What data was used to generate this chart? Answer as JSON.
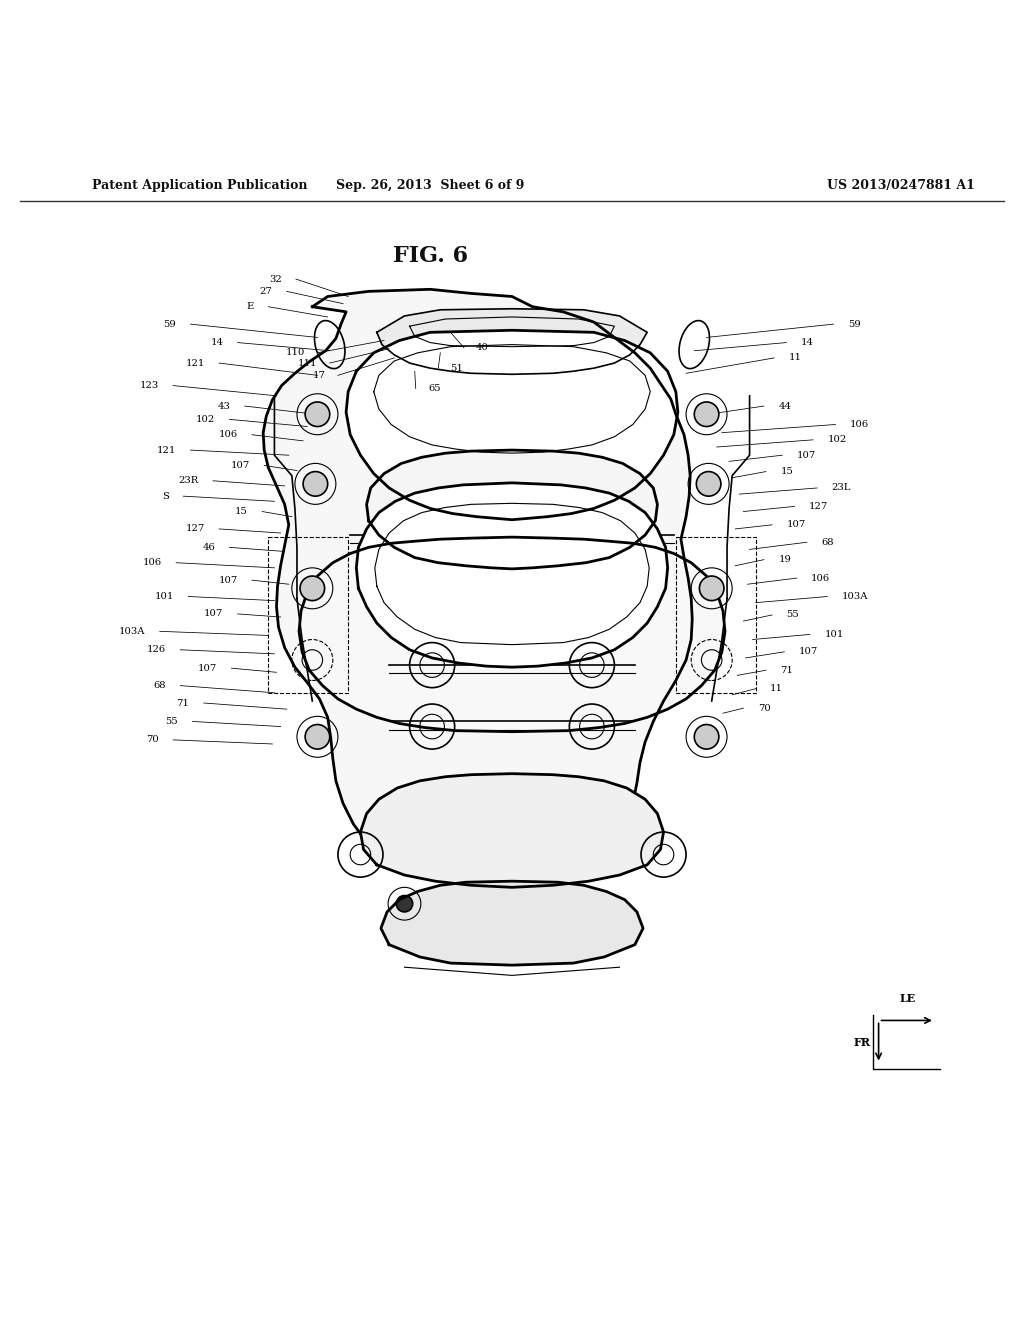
{
  "title": "FIG. 6",
  "header_left": "Patent Application Publication",
  "header_center": "Sep. 26, 2013  Sheet 6 of 9",
  "header_right": "US 2013/0247881 A1",
  "bg_color": "#ffffff",
  "line_color": "#000000",
  "label_color": "#000000",
  "fig_label": "FIG. 6"
}
